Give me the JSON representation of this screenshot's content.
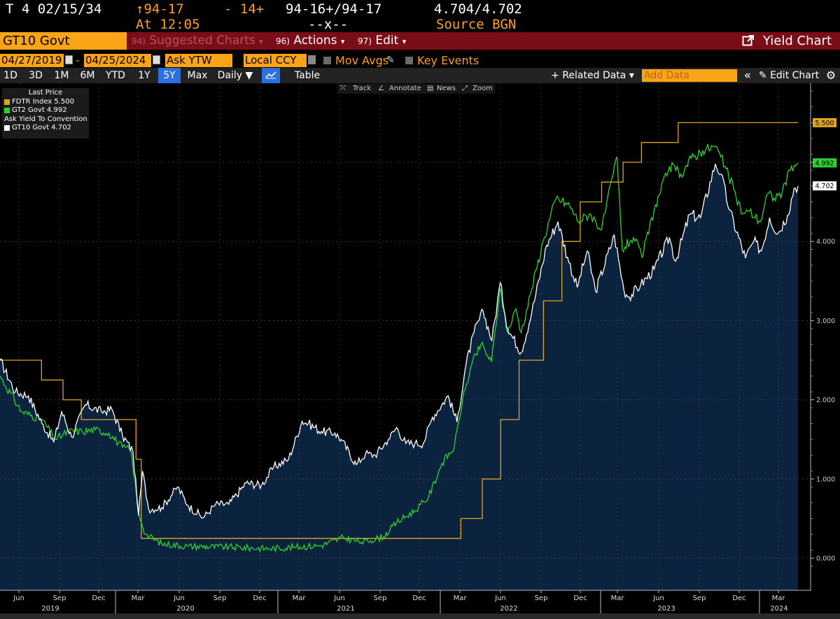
{
  "quote": {
    "security": "T 4 02/15/34",
    "last": "↑94-17",
    "change": "- 14+",
    "bid_ask": "94-16+/94-17",
    "yields": "4.704/4.702",
    "at_time": "At 12:05",
    "size": "--x--",
    "source": "Source BGN"
  },
  "menubar": {
    "ticker": "GT10 Govt",
    "suggested_num": "94)",
    "suggested_label": "Suggested Charts",
    "actions_num": "96)",
    "actions_label": "Actions",
    "edit_num": "97)",
    "edit_label": "Edit",
    "dropdown_glyph": "▾",
    "yield_chart": "Yield Chart"
  },
  "controls": {
    "start_date": "04/27/2019",
    "dash": "-",
    "end_date": "04/25/2024",
    "field": "Ask YTW",
    "currency": "Local CCY",
    "mov_avgs": "Mov Avgs",
    "key_events": "Key Events"
  },
  "periods": [
    "1D",
    "3D",
    "1M",
    "6M",
    "YTD",
    "1Y",
    "5Y",
    "Max"
  ],
  "selected_period": "5Y",
  "toolbar": {
    "frequency": "Daily ▼",
    "table": "Table",
    "related_data": "+ Related Data ▾",
    "add_data_placeholder": "Add Data",
    "collapse": "«",
    "edit_chart": "✎ Edit Chart",
    "gear": "⚙"
  },
  "chart_tools": {
    "track": "Track",
    "annotate": "Annotate",
    "news": "News",
    "zoom": "Zoom"
  },
  "legend": {
    "title": "Last Price",
    "entries": [
      {
        "label": "FDTR Index 5.500",
        "color": "#e0a51f"
      },
      {
        "label": "GT2 Govt     4.992",
        "color": "#2bd32b"
      }
    ],
    "subtitle": "Ask Yield To Convention",
    "entries2": [
      {
        "label": "GT10 Govt   4.702",
        "color": "#ffffff"
      }
    ]
  },
  "chart_data": {
    "type": "line",
    "y_axis": {
      "ylim": [
        -0.2,
        6.1
      ],
      "ticks": [
        "0.000",
        "1.000",
        "2.000",
        "3.000",
        "4.000",
        "5.000"
      ],
      "side": "right"
    },
    "x_axis": {
      "month_ticks": [
        "Jun",
        "Sep",
        "Dec",
        "Mar",
        "Jun",
        "Sep",
        "Dec",
        "Mar",
        "Jun",
        "Sep",
        "Dec",
        "Mar",
        "Jun",
        "Sep",
        "Dec",
        "Mar",
        "Jun",
        "Sep",
        "Dec",
        "Mar"
      ],
      "year_labels": [
        "2019",
        "2020",
        "2021",
        "2022",
        "2023",
        "2024"
      ]
    },
    "last_value_labels": [
      {
        "series": "FDTR Index",
        "value": "5.500",
        "color": "#e0a51f"
      },
      {
        "series": "GT2 Govt",
        "value": "4.992",
        "color": "#2bd32b"
      },
      {
        "series": "GT10 Govt",
        "value": "4.702",
        "color": "#ffffff"
      }
    ],
    "series": [
      {
        "name": "FDTR Index",
        "color": "#e0a51f",
        "step": true,
        "points": [
          [
            "2019-04-27",
            2.5
          ],
          [
            "2019-07-31",
            2.25
          ],
          [
            "2019-09-18",
            2.0
          ],
          [
            "2019-10-30",
            1.75
          ],
          [
            "2020-03-03",
            1.25
          ],
          [
            "2020-03-15",
            0.25
          ],
          [
            "2022-03-16",
            0.5
          ],
          [
            "2022-05-04",
            1.0
          ],
          [
            "2022-06-15",
            1.75
          ],
          [
            "2022-07-27",
            2.5
          ],
          [
            "2022-09-21",
            3.25
          ],
          [
            "2022-11-02",
            4.0
          ],
          [
            "2022-12-14",
            4.5
          ],
          [
            "2023-02-01",
            4.75
          ],
          [
            "2023-03-22",
            5.0
          ],
          [
            "2023-05-03",
            5.25
          ],
          [
            "2023-07-26",
            5.5
          ],
          [
            "2024-04-25",
            5.5
          ]
        ]
      },
      {
        "name": "GT2 Govt",
        "color": "#2bd32b",
        "points": [
          [
            "2019-04-27",
            2.3
          ],
          [
            "2019-06-15",
            1.85
          ],
          [
            "2019-08-01",
            1.75
          ],
          [
            "2019-09-01",
            1.5
          ],
          [
            "2019-10-01",
            1.6
          ],
          [
            "2019-11-01",
            1.6
          ],
          [
            "2019-12-01",
            1.62
          ],
          [
            "2020-01-01",
            1.58
          ],
          [
            "2020-02-01",
            1.4
          ],
          [
            "2020-02-20",
            1.37
          ],
          [
            "2020-03-10",
            0.55
          ],
          [
            "2020-03-25",
            0.3
          ],
          [
            "2020-05-01",
            0.18
          ],
          [
            "2020-07-01",
            0.15
          ],
          [
            "2020-10-01",
            0.14
          ],
          [
            "2021-01-01",
            0.12
          ],
          [
            "2021-03-01",
            0.14
          ],
          [
            "2021-05-01",
            0.16
          ],
          [
            "2021-06-20",
            0.26
          ],
          [
            "2021-08-01",
            0.2
          ],
          [
            "2021-09-20",
            0.27
          ],
          [
            "2021-10-20",
            0.45
          ],
          [
            "2021-12-01",
            0.6
          ],
          [
            "2022-01-01",
            0.77
          ],
          [
            "2022-02-01",
            1.2
          ],
          [
            "2022-03-01",
            1.4
          ],
          [
            "2022-03-20",
            2.0
          ],
          [
            "2022-04-10",
            2.45
          ],
          [
            "2022-05-01",
            2.7
          ],
          [
            "2022-05-25",
            2.48
          ],
          [
            "2022-06-14",
            3.4
          ],
          [
            "2022-07-01",
            2.85
          ],
          [
            "2022-07-20",
            3.15
          ],
          [
            "2022-08-01",
            2.85
          ],
          [
            "2022-08-25",
            3.4
          ],
          [
            "2022-09-20",
            4.0
          ],
          [
            "2022-10-20",
            4.55
          ],
          [
            "2022-11-20",
            4.45
          ],
          [
            "2022-12-10",
            4.25
          ],
          [
            "2023-01-05",
            4.35
          ],
          [
            "2023-02-01",
            4.15
          ],
          [
            "2023-03-08",
            5.07
          ],
          [
            "2023-03-20",
            3.9
          ],
          [
            "2023-04-15",
            4.05
          ],
          [
            "2023-05-04",
            3.8
          ],
          [
            "2023-06-01",
            4.4
          ],
          [
            "2023-07-06",
            4.95
          ],
          [
            "2023-08-01",
            4.85
          ],
          [
            "2023-08-25",
            5.05
          ],
          [
            "2023-09-20",
            5.15
          ],
          [
            "2023-10-19",
            5.2
          ],
          [
            "2023-11-10",
            4.95
          ],
          [
            "2023-11-30",
            4.65
          ],
          [
            "2023-12-20",
            4.35
          ],
          [
            "2024-01-05",
            4.38
          ],
          [
            "2024-01-30",
            4.25
          ],
          [
            "2024-02-15",
            4.6
          ],
          [
            "2024-03-01",
            4.55
          ],
          [
            "2024-03-20",
            4.62
          ],
          [
            "2024-04-10",
            4.95
          ],
          [
            "2024-04-25",
            4.99
          ]
        ]
      },
      {
        "name": "GT10 Govt",
        "color": "#ffffff",
        "fill": "#0c2340",
        "points": [
          [
            "2019-04-27",
            2.5
          ],
          [
            "2019-06-01",
            2.1
          ],
          [
            "2019-07-01",
            2.05
          ],
          [
            "2019-08-01",
            1.7
          ],
          [
            "2019-08-28",
            1.47
          ],
          [
            "2019-09-15",
            1.85
          ],
          [
            "2019-10-08",
            1.53
          ],
          [
            "2019-11-08",
            1.94
          ],
          [
            "2019-12-15",
            1.85
          ],
          [
            "2020-01-08",
            1.88
          ],
          [
            "2020-02-01",
            1.55
          ],
          [
            "2020-02-25",
            1.35
          ],
          [
            "2020-03-09",
            0.54
          ],
          [
            "2020-03-18",
            1.1
          ],
          [
            "2020-04-01",
            0.62
          ],
          [
            "2020-05-01",
            0.64
          ],
          [
            "2020-06-06",
            0.9
          ],
          [
            "2020-07-01",
            0.66
          ],
          [
            "2020-08-04",
            0.51
          ],
          [
            "2020-09-01",
            0.68
          ],
          [
            "2020-10-01",
            0.68
          ],
          [
            "2020-11-10",
            0.95
          ],
          [
            "2020-12-15",
            0.92
          ],
          [
            "2021-01-12",
            1.15
          ],
          [
            "2021-02-15",
            1.25
          ],
          [
            "2021-03-18",
            1.73
          ],
          [
            "2021-04-01",
            1.7
          ],
          [
            "2021-05-01",
            1.6
          ],
          [
            "2021-06-01",
            1.58
          ],
          [
            "2021-06-15",
            1.5
          ],
          [
            "2021-07-20",
            1.18
          ],
          [
            "2021-08-10",
            1.32
          ],
          [
            "2021-09-01",
            1.3
          ],
          [
            "2021-10-01",
            1.5
          ],
          [
            "2021-10-20",
            1.65
          ],
          [
            "2021-11-10",
            1.45
          ],
          [
            "2021-12-01",
            1.45
          ],
          [
            "2021-12-20",
            1.45
          ],
          [
            "2022-01-10",
            1.78
          ],
          [
            "2022-02-15",
            2.05
          ],
          [
            "2022-03-07",
            1.72
          ],
          [
            "2022-03-28",
            2.45
          ],
          [
            "2022-04-15",
            2.85
          ],
          [
            "2022-05-06",
            3.12
          ],
          [
            "2022-05-26",
            2.75
          ],
          [
            "2022-06-14",
            3.48
          ],
          [
            "2022-07-01",
            2.9
          ],
          [
            "2022-08-01",
            2.6
          ],
          [
            "2022-08-25",
            3.1
          ],
          [
            "2022-09-28",
            3.95
          ],
          [
            "2022-10-24",
            4.25
          ],
          [
            "2022-11-15",
            3.8
          ],
          [
            "2022-12-07",
            3.42
          ],
          [
            "2022-12-30",
            3.88
          ],
          [
            "2023-01-18",
            3.37
          ],
          [
            "2023-03-02",
            4.08
          ],
          [
            "2023-03-24",
            3.38
          ],
          [
            "2023-04-05",
            3.3
          ],
          [
            "2023-05-01",
            3.45
          ],
          [
            "2023-06-01",
            3.65
          ],
          [
            "2023-07-06",
            4.05
          ],
          [
            "2023-07-20",
            3.75
          ],
          [
            "2023-08-21",
            4.34
          ],
          [
            "2023-09-15",
            4.3
          ],
          [
            "2023-10-19",
            4.98
          ],
          [
            "2023-11-01",
            4.85
          ],
          [
            "2023-11-20",
            4.4
          ],
          [
            "2023-12-27",
            3.79
          ],
          [
            "2024-01-15",
            4.0
          ],
          [
            "2024-02-01",
            3.88
          ],
          [
            "2024-02-20",
            4.3
          ],
          [
            "2024-03-10",
            4.1
          ],
          [
            "2024-04-01",
            4.33
          ],
          [
            "2024-04-16",
            4.67
          ],
          [
            "2024-04-25",
            4.7
          ]
        ]
      }
    ]
  }
}
